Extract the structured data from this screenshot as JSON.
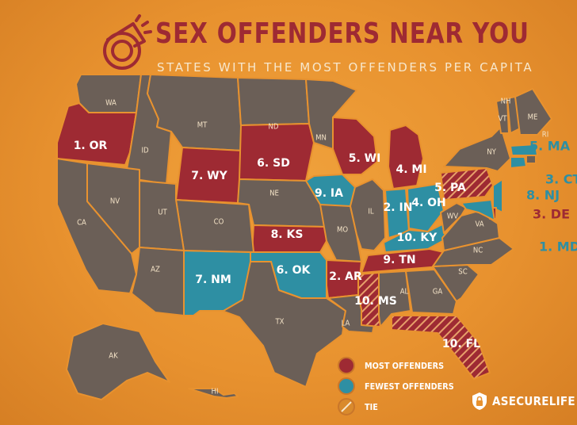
{
  "header": {
    "title": "SEX OFFENDERS NEAR YOU",
    "subtitle": "STATES WITH THE MOST OFFENDERS PER CAPITA"
  },
  "colors": {
    "background": "#e8922f",
    "land": "#6b5f57",
    "most": "#9e2a33",
    "fewest": "#2e8fa3",
    "label": "#f3e2c6"
  },
  "legend": {
    "most": "MOST OFFENDERS",
    "fewest": "FEWEST OFFENDERS",
    "tie": "TIE"
  },
  "brand": {
    "name": "ASECURELIFE",
    "icon": "shield-lock-icon"
  },
  "states": {
    "WA": {
      "label": "WA",
      "category": "none"
    },
    "OR": {
      "label": "1. OR",
      "category": "most"
    },
    "ID": {
      "label": "ID",
      "category": "none"
    },
    "MT": {
      "label": "MT",
      "category": "none"
    },
    "WY": {
      "label": "7. WY",
      "category": "most"
    },
    "ND": {
      "label": "ND",
      "category": "none"
    },
    "SD": {
      "label": "6. SD",
      "category": "most"
    },
    "NE": {
      "label": "NE",
      "category": "none"
    },
    "KS": {
      "label": "8. KS",
      "category": "most"
    },
    "OK": {
      "label": "6. OK",
      "category": "fewest"
    },
    "TX": {
      "label": "TX",
      "category": "none"
    },
    "NM": {
      "label": "7. NM",
      "category": "fewest"
    },
    "CO": {
      "label": "CO",
      "category": "none"
    },
    "UT": {
      "label": "UT",
      "category": "none"
    },
    "AZ": {
      "label": "AZ",
      "category": "none"
    },
    "NV": {
      "label": "NV",
      "category": "none"
    },
    "CA": {
      "label": "CA",
      "category": "none"
    },
    "MN": {
      "label": "MN",
      "category": "none"
    },
    "IA": {
      "label": "9. IA",
      "category": "fewest"
    },
    "MO": {
      "label": "MO",
      "category": "none"
    },
    "AR": {
      "label": "2. AR",
      "category": "most"
    },
    "LA": {
      "label": "LA",
      "category": "none"
    },
    "WI": {
      "label": "5. WI",
      "category": "most"
    },
    "IL": {
      "label": "IL",
      "category": "none"
    },
    "MI": {
      "label": "4. MI",
      "category": "most"
    },
    "IN": {
      "label": "2. IN",
      "category": "fewest"
    },
    "OH": {
      "label": "4. OH",
      "category": "fewest"
    },
    "KY": {
      "label": "10. KY",
      "category": "fewest"
    },
    "TN": {
      "label": "9. TN",
      "category": "most"
    },
    "MS": {
      "label": "10. MS",
      "category": "tie"
    },
    "AL": {
      "label": "AL",
      "category": "none"
    },
    "GA": {
      "label": "GA",
      "category": "none"
    },
    "FL": {
      "label": "10. FL",
      "category": "tie"
    },
    "SC": {
      "label": "SC",
      "category": "none"
    },
    "NC": {
      "label": "NC",
      "category": "none"
    },
    "VA": {
      "label": "VA",
      "category": "none"
    },
    "WV": {
      "label": "WV",
      "category": "none"
    },
    "PA": {
      "label": "5. PA",
      "category": "tie"
    },
    "NY": {
      "label": "NY",
      "category": "none"
    },
    "VT": {
      "label": "VT",
      "category": "none"
    },
    "NH": {
      "label": "NH",
      "category": "none"
    },
    "ME": {
      "label": "ME",
      "category": "none"
    },
    "MA": {
      "label": "5. MA",
      "category": "fewest"
    },
    "RI": {
      "label": "RI",
      "category": "none"
    },
    "CT": {
      "label": "3. CT",
      "category": "fewest"
    },
    "NJ": {
      "label": "8. NJ",
      "category": "fewest"
    },
    "DE": {
      "label": "3. DE",
      "category": "most"
    },
    "MD": {
      "label": "1. MD",
      "category": "fewest"
    },
    "AK": {
      "label": "AK",
      "category": "none"
    },
    "HI": {
      "label": "HI",
      "category": "none"
    }
  }
}
